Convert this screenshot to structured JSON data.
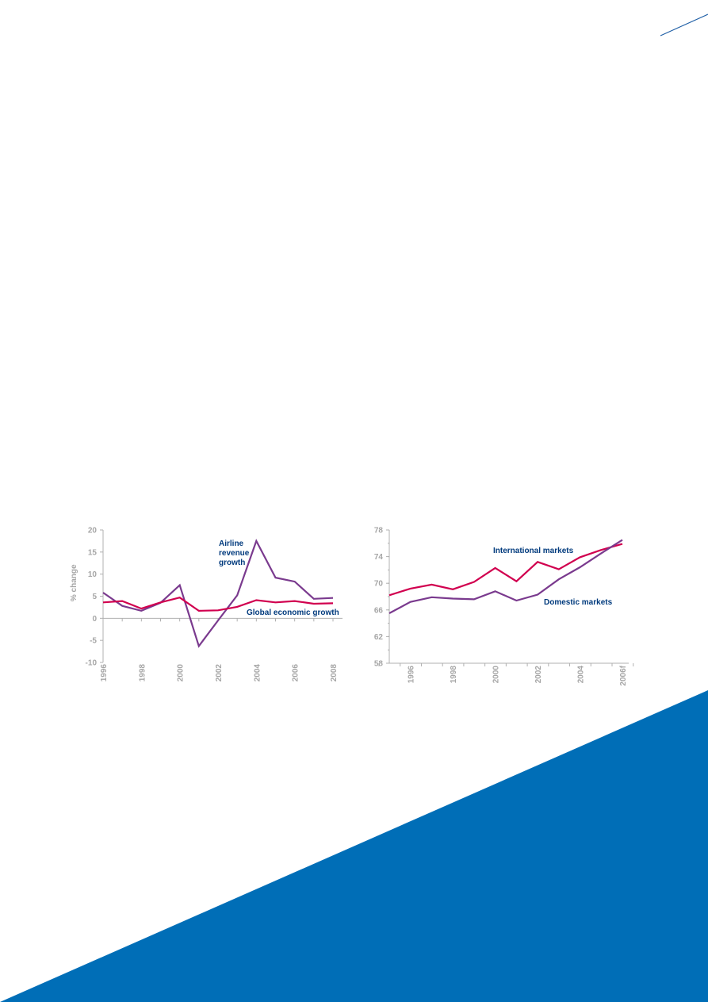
{
  "colors": {
    "brand_blue": "#006eb7",
    "axis_gray": "#b0b0b0",
    "label_gray": "#a6a6a6",
    "navy": "#003a7d",
    "magenta": "#d1004f",
    "purple": "#7a3a8e"
  },
  "chart_data": [
    {
      "type": "line",
      "title": "",
      "xlabel": "",
      "ylabel": "% change",
      "ylim": [
        -10,
        20
      ],
      "yticks": [
        -10,
        -5,
        0,
        5,
        10,
        15,
        20
      ],
      "xlim": [
        1996,
        2008
      ],
      "xtick_labels": [
        "1996",
        "1998",
        "2000",
        "2002",
        "2004",
        "2006",
        "2008"
      ],
      "grid": false,
      "series": [
        {
          "name": "Airline revenue growth",
          "color": "#7a3a8e",
          "x": [
            1996,
            1997,
            1998,
            1999,
            2000,
            2001,
            2002,
            2003,
            2004,
            2005,
            2006,
            2007,
            2008
          ],
          "values": [
            5.8,
            2.8,
            1.7,
            3.5,
            7.5,
            -6.3,
            -0.5,
            5.2,
            17.5,
            9.2,
            8.3,
            4.4,
            4.6
          ]
        },
        {
          "name": "Global economic growth",
          "color": "#d1004f",
          "x": [
            1996,
            1997,
            1998,
            1999,
            2000,
            2001,
            2002,
            2003,
            2004,
            2005,
            2006,
            2007,
            2008
          ],
          "values": [
            3.6,
            3.9,
            2.2,
            3.6,
            4.7,
            1.7,
            1.8,
            2.6,
            4.1,
            3.6,
            3.9,
            3.3,
            3.4
          ]
        }
      ],
      "annotations": [
        {
          "lines": [
            "Airline",
            "revenue",
            "growth"
          ],
          "color": "#003a7d"
        },
        {
          "lines": [
            "Global economic growth"
          ],
          "color": "#003a7d"
        }
      ]
    },
    {
      "type": "line",
      "title": "",
      "xlabel": "",
      "ylabel": "",
      "ylim": [
        58,
        78
      ],
      "yticks": [
        58,
        62,
        66,
        70,
        74,
        78
      ],
      "xlim": [
        1995,
        2006
      ],
      "xtick_labels": [
        "1996",
        "1998",
        "2000",
        "2002",
        "2004",
        "2006f"
      ],
      "grid": false,
      "series": [
        {
          "name": "International markets",
          "color": "#d1004f",
          "x": [
            1995,
            1996,
            1997,
            1998,
            1999,
            2000,
            2001,
            2002,
            2003,
            2004,
            2005,
            2006
          ],
          "values": [
            68.2,
            69.2,
            69.8,
            69.1,
            70.2,
            72.3,
            70.3,
            73.2,
            72.1,
            73.9,
            75.0,
            75.9
          ]
        },
        {
          "name": "Domestic markets",
          "color": "#7a3a8e",
          "x": [
            1995,
            1996,
            1997,
            1998,
            1999,
            2000,
            2001,
            2002,
            2003,
            2004,
            2005,
            2006
          ],
          "values": [
            65.5,
            67.2,
            67.9,
            67.7,
            67.6,
            68.8,
            67.4,
            68.3,
            70.6,
            72.4,
            74.5,
            76.5
          ]
        }
      ],
      "annotations": [
        {
          "lines": [
            "International markets"
          ],
          "color": "#003a7d"
        },
        {
          "lines": [
            "Domestic markets"
          ],
          "color": "#003a7d"
        }
      ]
    }
  ]
}
